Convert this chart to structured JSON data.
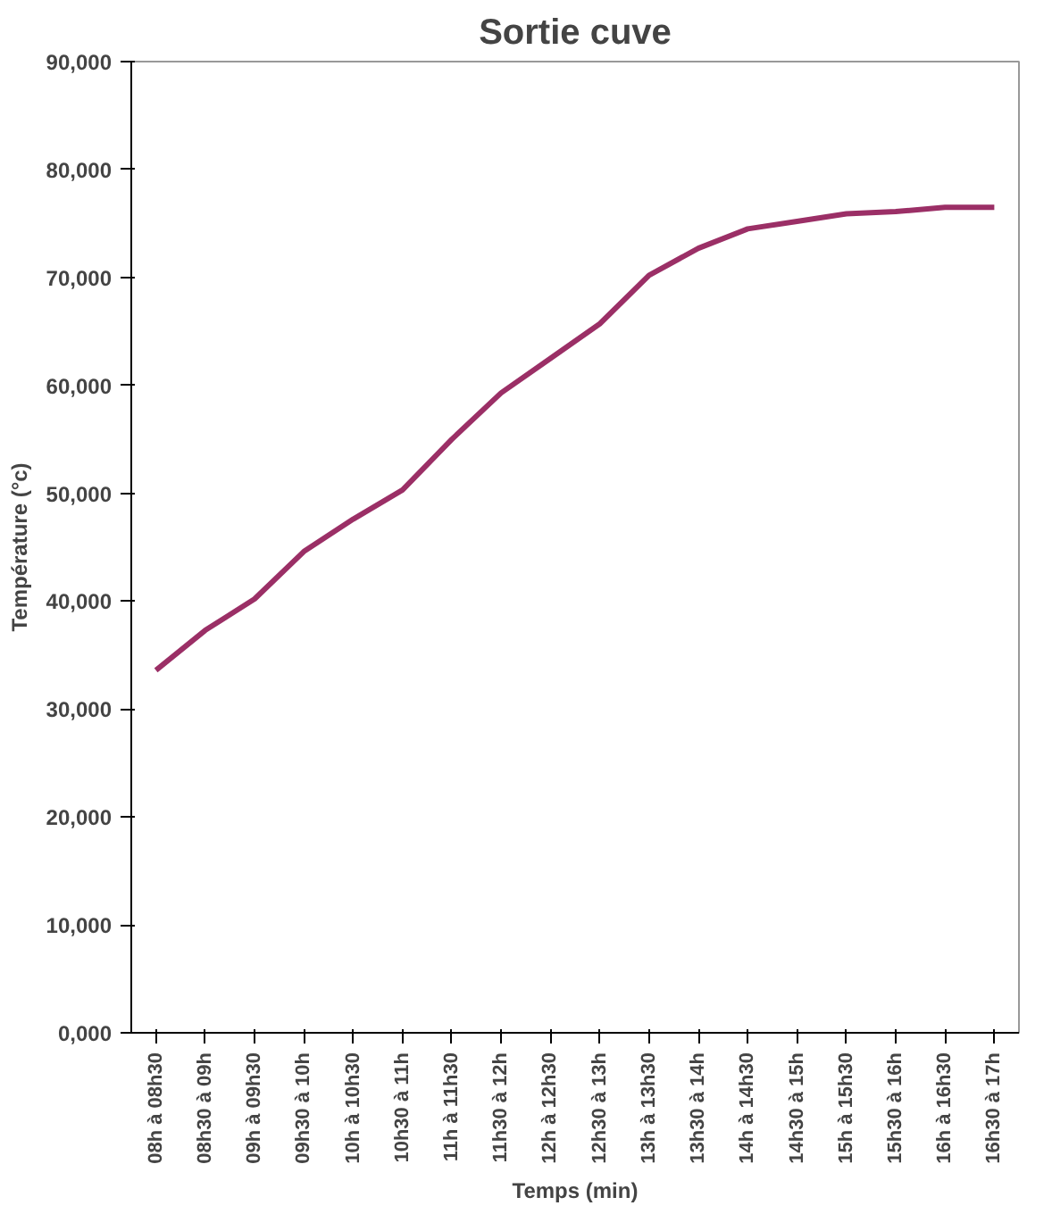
{
  "chart_data": {
    "type": "line",
    "title": "Sortie cuve",
    "xlabel": "Temps (min)",
    "ylabel": "Température (°c)",
    "categories": [
      "08h à 08h30",
      "08h30 à 09h",
      "09h à 09h30",
      "09h30 à 10h",
      "10h à 10h30",
      "10h30 à 11h",
      "11h à 11h30",
      "11h30 à 12h",
      "12h à 12h30",
      "12h30 à 13h",
      "13h à 13h30",
      "13h30 à 14h",
      "14h à 14h30",
      "14h30 à 15h",
      "15h à 15h30",
      "15h30 à 16h",
      "16h à 16h30",
      "16h30 à 17h"
    ],
    "series": [
      {
        "color": "#9b2f66",
        "values": [
          33600,
          37300,
          40200,
          44600,
          47600,
          50300,
          55000,
          59300,
          62500,
          65700,
          70200,
          72700,
          74500,
          75200,
          75900,
          76100,
          76500,
          76500
        ]
      }
    ],
    "ylim": [
      0,
      90000
    ],
    "yticks": [
      {
        "value": 0,
        "label": "0,000"
      },
      {
        "value": 10000,
        "label": "10,000"
      },
      {
        "value": 20000,
        "label": "20,000"
      },
      {
        "value": 30000,
        "label": "30,000"
      },
      {
        "value": 40000,
        "label": "40,000"
      },
      {
        "value": 50000,
        "label": "50,000"
      },
      {
        "value": 60000,
        "label": "60,000"
      },
      {
        "value": 70000,
        "label": "70,000"
      },
      {
        "value": 80000,
        "label": "80,000"
      },
      {
        "value": 90000,
        "label": "90,000"
      }
    ],
    "grid": false,
    "line_style": "solid"
  }
}
